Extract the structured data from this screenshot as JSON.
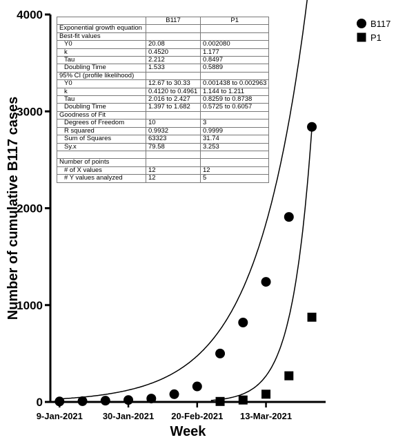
{
  "chart_data": {
    "type": "scatter",
    "ylabel": "Number of cumulative B117 cases",
    "xlabel": "Week",
    "ylim": [
      0,
      4000
    ],
    "y_ticks": [
      "0",
      "1000",
      "2000",
      "3000",
      "4000"
    ],
    "x_ticks": [
      "9-Jan-2021",
      "30-Jan-2021",
      "20-Feb-2021",
      "13-Mar-2021"
    ],
    "x_tick_weeks": [
      0,
      3,
      6,
      9
    ],
    "x_range_weeks": [
      -0.4,
      11.6
    ],
    "grid": false,
    "legend_position": "top-right",
    "series": [
      {
        "name": "B117",
        "marker": "circle",
        "weeks": [
          0,
          1,
          2,
          3,
          4,
          5,
          6,
          7,
          8,
          9,
          10,
          11
        ],
        "values": [
          5,
          8,
          13,
          20,
          35,
          80,
          160,
          500,
          820,
          1240,
          1910,
          2840
        ],
        "fit": {
          "Y0": 20.08,
          "k": 0.452
        }
      },
      {
        "name": "P1",
        "marker": "square",
        "weeks": [
          7,
          8,
          9,
          10,
          11
        ],
        "values": [
          5,
          20,
          80,
          270,
          875
        ],
        "fit": {
          "Y0": 0.00208,
          "k": 1.177
        }
      }
    ]
  },
  "results_table": {
    "headers": [
      "",
      "B117",
      "P1"
    ],
    "rows": [
      {
        "label": "Exponential growth equation",
        "b117": "",
        "p1": "",
        "indent": false
      },
      {
        "label": "Best-fit values",
        "b117": "",
        "p1": "",
        "indent": false
      },
      {
        "label": "Y0",
        "b117": "20.08",
        "p1": "0.002080",
        "indent": true
      },
      {
        "label": "k",
        "b117": "0.4520",
        "p1": "1.177",
        "indent": true
      },
      {
        "label": "Tau",
        "b117": "2.212",
        "p1": "0.8497",
        "indent": true
      },
      {
        "label": "Doubling Time",
        "b117": "1.533",
        "p1": "0.5889",
        "indent": true
      },
      {
        "label": "95% CI (profile likelihood)",
        "b117": "",
        "p1": "",
        "indent": false
      },
      {
        "label": "Y0",
        "b117": "12.67 to 30.33",
        "p1": "0.001438 to 0.002963",
        "indent": true
      },
      {
        "label": "k",
        "b117": "0.4120 to 0.4961",
        "p1": "1.144 to 1.211",
        "indent": true
      },
      {
        "label": "Tau",
        "b117": "2.016 to 2.427",
        "p1": "0.8259 to 0.8738",
        "indent": true
      },
      {
        "label": "Doubling Time",
        "b117": "1.397 to 1.682",
        "p1": "0.5725 to 0.6057",
        "indent": true
      },
      {
        "label": "Goodness of Fit",
        "b117": "",
        "p1": "",
        "indent": false
      },
      {
        "label": "Degrees of Freedom",
        "b117": "10",
        "p1": "3",
        "indent": true
      },
      {
        "label": "R squared",
        "b117": "0.9932",
        "p1": "0.9999",
        "indent": true
      },
      {
        "label": "Sum of Squares",
        "b117": "63323",
        "p1": "31.74",
        "indent": true
      },
      {
        "label": "Sy.x",
        "b117": "79.58",
        "p1": "3.253",
        "indent": true
      },
      {
        "label": "",
        "b117": "",
        "p1": "",
        "indent": false
      },
      {
        "label": "Number of points",
        "b117": "",
        "p1": "",
        "indent": false
      },
      {
        "label": "# of X values",
        "b117": "12",
        "p1": "12",
        "indent": true
      },
      {
        "label": "# Y values analyzed",
        "b117": "12",
        "p1": "5",
        "indent": true
      }
    ]
  }
}
